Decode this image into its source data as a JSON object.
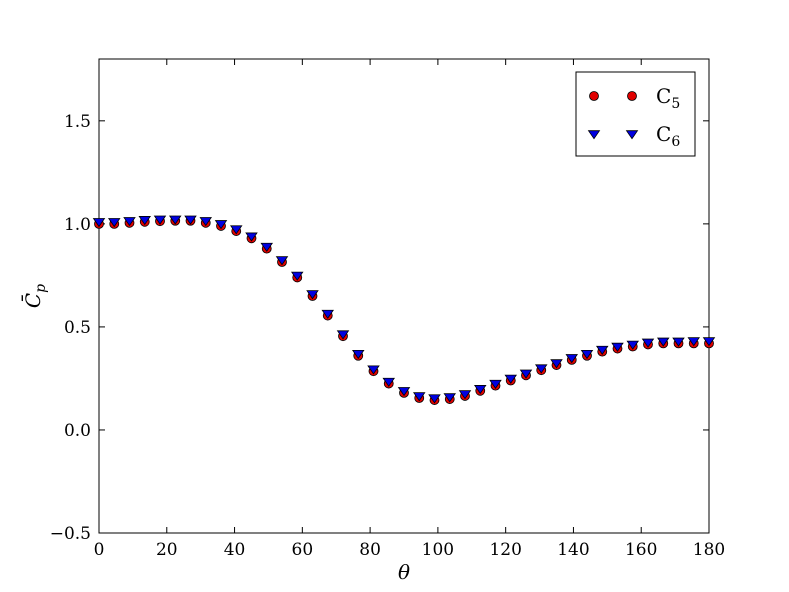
{
  "chart_data": {
    "type": "scatter",
    "xlabel": "θ",
    "ylabel": "C̄",
    "ylabel_sub": "p",
    "xlim": [
      0,
      180
    ],
    "ylim": [
      -0.5,
      1.8
    ],
    "xticks": [
      0,
      20,
      40,
      60,
      80,
      100,
      120,
      140,
      160,
      180
    ],
    "xtick_labels": [
      "0",
      "20",
      "40",
      "60",
      "80",
      "100",
      "120",
      "140",
      "160",
      "180"
    ],
    "yticks": [
      -0.5,
      0.0,
      0.5,
      1.0,
      1.5
    ],
    "ytick_labels": [
      "−0.5",
      "0.0",
      "0.5",
      "1.0",
      "1.5"
    ],
    "grid": false,
    "legend_position": "top-right",
    "x": [
      0,
      4.5,
      9,
      13.5,
      18,
      22.5,
      27,
      31.5,
      36,
      40.5,
      45,
      49.5,
      54,
      58.5,
      63,
      67.5,
      72,
      76.5,
      81,
      85.5,
      90,
      94.5,
      99,
      103.5,
      108,
      112.5,
      117,
      121.5,
      126,
      130.5,
      135,
      139.5,
      144,
      148.5,
      153,
      157.5,
      162,
      166.5,
      171,
      175.5,
      180
    ],
    "series": [
      {
        "name": "C",
        "name_sub": "5",
        "marker": "circle",
        "color": "#e00000",
        "values": [
          1.0,
          1.0,
          1.005,
          1.01,
          1.013,
          1.015,
          1.015,
          1.005,
          0.99,
          0.965,
          0.93,
          0.88,
          0.815,
          0.74,
          0.65,
          0.555,
          0.455,
          0.36,
          0.285,
          0.225,
          0.18,
          0.155,
          0.145,
          0.15,
          0.165,
          0.19,
          0.215,
          0.24,
          0.265,
          0.29,
          0.315,
          0.34,
          0.36,
          0.38,
          0.395,
          0.405,
          0.415,
          0.42,
          0.42,
          0.42,
          0.42
        ]
      },
      {
        "name": "C",
        "name_sub": "6",
        "marker": "triangle-down",
        "color": "#0000e0",
        "values": [
          1.01,
          1.01,
          1.015,
          1.02,
          1.022,
          1.022,
          1.022,
          1.015,
          1.0,
          0.975,
          0.94,
          0.89,
          0.825,
          0.75,
          0.66,
          0.565,
          0.465,
          0.37,
          0.295,
          0.235,
          0.19,
          0.165,
          0.155,
          0.16,
          0.175,
          0.2,
          0.225,
          0.25,
          0.275,
          0.3,
          0.325,
          0.35,
          0.37,
          0.39,
          0.405,
          0.415,
          0.425,
          0.43,
          0.43,
          0.432,
          0.432
        ]
      }
    ]
  }
}
